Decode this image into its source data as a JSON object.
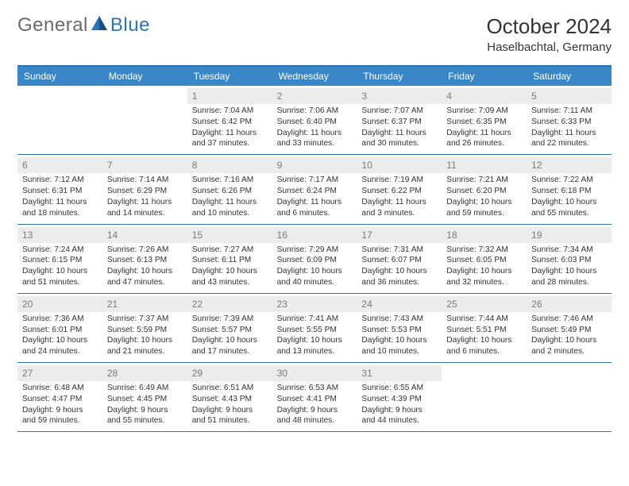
{
  "logo": {
    "word1": "General",
    "word2": "Blue"
  },
  "title": "October 2024",
  "location": "Haselbachtal, Germany",
  "colors": {
    "header_bg": "#3a87c8",
    "border": "#2e74b5",
    "daynum_bg": "#ececec",
    "daynum_text": "#7a7a7a",
    "text": "#333333",
    "logo_gray": "#6a6a6a",
    "logo_blue": "#2e74b5",
    "background": "#ffffff"
  },
  "day_names": [
    "Sunday",
    "Monday",
    "Tuesday",
    "Wednesday",
    "Thursday",
    "Friday",
    "Saturday"
  ],
  "weeks": [
    [
      {
        "num": "",
        "lines": []
      },
      {
        "num": "",
        "lines": []
      },
      {
        "num": "1",
        "lines": [
          "Sunrise: 7:04 AM",
          "Sunset: 6:42 PM",
          "Daylight: 11 hours",
          "and 37 minutes."
        ]
      },
      {
        "num": "2",
        "lines": [
          "Sunrise: 7:06 AM",
          "Sunset: 6:40 PM",
          "Daylight: 11 hours",
          "and 33 minutes."
        ]
      },
      {
        "num": "3",
        "lines": [
          "Sunrise: 7:07 AM",
          "Sunset: 6:37 PM",
          "Daylight: 11 hours",
          "and 30 minutes."
        ]
      },
      {
        "num": "4",
        "lines": [
          "Sunrise: 7:09 AM",
          "Sunset: 6:35 PM",
          "Daylight: 11 hours",
          "and 26 minutes."
        ]
      },
      {
        "num": "5",
        "lines": [
          "Sunrise: 7:11 AM",
          "Sunset: 6:33 PM",
          "Daylight: 11 hours",
          "and 22 minutes."
        ]
      }
    ],
    [
      {
        "num": "6",
        "lines": [
          "Sunrise: 7:12 AM",
          "Sunset: 6:31 PM",
          "Daylight: 11 hours",
          "and 18 minutes."
        ]
      },
      {
        "num": "7",
        "lines": [
          "Sunrise: 7:14 AM",
          "Sunset: 6:29 PM",
          "Daylight: 11 hours",
          "and 14 minutes."
        ]
      },
      {
        "num": "8",
        "lines": [
          "Sunrise: 7:16 AM",
          "Sunset: 6:26 PM",
          "Daylight: 11 hours",
          "and 10 minutes."
        ]
      },
      {
        "num": "9",
        "lines": [
          "Sunrise: 7:17 AM",
          "Sunset: 6:24 PM",
          "Daylight: 11 hours",
          "and 6 minutes."
        ]
      },
      {
        "num": "10",
        "lines": [
          "Sunrise: 7:19 AM",
          "Sunset: 6:22 PM",
          "Daylight: 11 hours",
          "and 3 minutes."
        ]
      },
      {
        "num": "11",
        "lines": [
          "Sunrise: 7:21 AM",
          "Sunset: 6:20 PM",
          "Daylight: 10 hours",
          "and 59 minutes."
        ]
      },
      {
        "num": "12",
        "lines": [
          "Sunrise: 7:22 AM",
          "Sunset: 6:18 PM",
          "Daylight: 10 hours",
          "and 55 minutes."
        ]
      }
    ],
    [
      {
        "num": "13",
        "lines": [
          "Sunrise: 7:24 AM",
          "Sunset: 6:15 PM",
          "Daylight: 10 hours",
          "and 51 minutes."
        ]
      },
      {
        "num": "14",
        "lines": [
          "Sunrise: 7:26 AM",
          "Sunset: 6:13 PM",
          "Daylight: 10 hours",
          "and 47 minutes."
        ]
      },
      {
        "num": "15",
        "lines": [
          "Sunrise: 7:27 AM",
          "Sunset: 6:11 PM",
          "Daylight: 10 hours",
          "and 43 minutes."
        ]
      },
      {
        "num": "16",
        "lines": [
          "Sunrise: 7:29 AM",
          "Sunset: 6:09 PM",
          "Daylight: 10 hours",
          "and 40 minutes."
        ]
      },
      {
        "num": "17",
        "lines": [
          "Sunrise: 7:31 AM",
          "Sunset: 6:07 PM",
          "Daylight: 10 hours",
          "and 36 minutes."
        ]
      },
      {
        "num": "18",
        "lines": [
          "Sunrise: 7:32 AM",
          "Sunset: 6:05 PM",
          "Daylight: 10 hours",
          "and 32 minutes."
        ]
      },
      {
        "num": "19",
        "lines": [
          "Sunrise: 7:34 AM",
          "Sunset: 6:03 PM",
          "Daylight: 10 hours",
          "and 28 minutes."
        ]
      }
    ],
    [
      {
        "num": "20",
        "lines": [
          "Sunrise: 7:36 AM",
          "Sunset: 6:01 PM",
          "Daylight: 10 hours",
          "and 24 minutes."
        ]
      },
      {
        "num": "21",
        "lines": [
          "Sunrise: 7:37 AM",
          "Sunset: 5:59 PM",
          "Daylight: 10 hours",
          "and 21 minutes."
        ]
      },
      {
        "num": "22",
        "lines": [
          "Sunrise: 7:39 AM",
          "Sunset: 5:57 PM",
          "Daylight: 10 hours",
          "and 17 minutes."
        ]
      },
      {
        "num": "23",
        "lines": [
          "Sunrise: 7:41 AM",
          "Sunset: 5:55 PM",
          "Daylight: 10 hours",
          "and 13 minutes."
        ]
      },
      {
        "num": "24",
        "lines": [
          "Sunrise: 7:43 AM",
          "Sunset: 5:53 PM",
          "Daylight: 10 hours",
          "and 10 minutes."
        ]
      },
      {
        "num": "25",
        "lines": [
          "Sunrise: 7:44 AM",
          "Sunset: 5:51 PM",
          "Daylight: 10 hours",
          "and 6 minutes."
        ]
      },
      {
        "num": "26",
        "lines": [
          "Sunrise: 7:46 AM",
          "Sunset: 5:49 PM",
          "Daylight: 10 hours",
          "and 2 minutes."
        ]
      }
    ],
    [
      {
        "num": "27",
        "lines": [
          "Sunrise: 6:48 AM",
          "Sunset: 4:47 PM",
          "Daylight: 9 hours",
          "and 59 minutes."
        ]
      },
      {
        "num": "28",
        "lines": [
          "Sunrise: 6:49 AM",
          "Sunset: 4:45 PM",
          "Daylight: 9 hours",
          "and 55 minutes."
        ]
      },
      {
        "num": "29",
        "lines": [
          "Sunrise: 6:51 AM",
          "Sunset: 4:43 PM",
          "Daylight: 9 hours",
          "and 51 minutes."
        ]
      },
      {
        "num": "30",
        "lines": [
          "Sunrise: 6:53 AM",
          "Sunset: 4:41 PM",
          "Daylight: 9 hours",
          "and 48 minutes."
        ]
      },
      {
        "num": "31",
        "lines": [
          "Sunrise: 6:55 AM",
          "Sunset: 4:39 PM",
          "Daylight: 9 hours",
          "and 44 minutes."
        ]
      },
      {
        "num": "",
        "lines": []
      },
      {
        "num": "",
        "lines": []
      }
    ]
  ]
}
